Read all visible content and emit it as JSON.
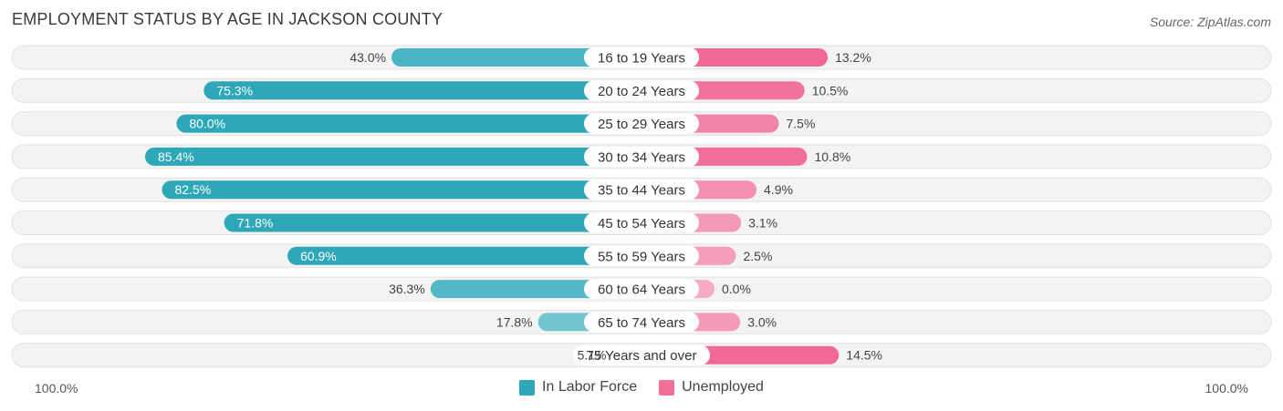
{
  "header": {
    "title": "EMPLOYMENT STATUS BY AGE IN JACKSON COUNTY",
    "source": "Source: ZipAtlas.com"
  },
  "axis": {
    "left_label": "100.0%",
    "right_label": "100.0%"
  },
  "legend": [
    {
      "label": "In Labor Force",
      "color": "#2ea8b8"
    },
    {
      "label": "Unemployed",
      "color": "#f07098"
    }
  ],
  "chart_data": {
    "type": "bar",
    "title": "EMPLOYMENT STATUS BY AGE IN JACKSON COUNTY",
    "categories": [
      "16 to 19 Years",
      "20 to 24 Years",
      "25 to 29 Years",
      "30 to 34 Years",
      "35 to 44 Years",
      "45 to 54 Years",
      "55 to 59 Years",
      "60 to 64 Years",
      "65 to 74 Years",
      "75 Years and over"
    ],
    "series": [
      {
        "name": "In Labor Force",
        "values": [
          43.0,
          75.3,
          80.0,
          85.4,
          82.5,
          71.8,
          60.9,
          36.3,
          17.8,
          5.1
        ],
        "labels": [
          "43.0%",
          "75.3%",
          "80.0%",
          "85.4%",
          "82.5%",
          "71.8%",
          "60.9%",
          "36.3%",
          "17.8%",
          "5.1%"
        ]
      },
      {
        "name": "Unemployed",
        "values": [
          13.2,
          10.5,
          7.5,
          10.8,
          4.9,
          3.1,
          2.5,
          0.0,
          3.0,
          14.5
        ],
        "labels": [
          "13.2%",
          "10.5%",
          "7.5%",
          "10.8%",
          "4.9%",
          "3.1%",
          "2.5%",
          "0.0%",
          "3.0%",
          "14.5%"
        ]
      }
    ],
    "xlim": [
      -100,
      100
    ],
    "grid": false,
    "legend_position": "bottom-center"
  }
}
